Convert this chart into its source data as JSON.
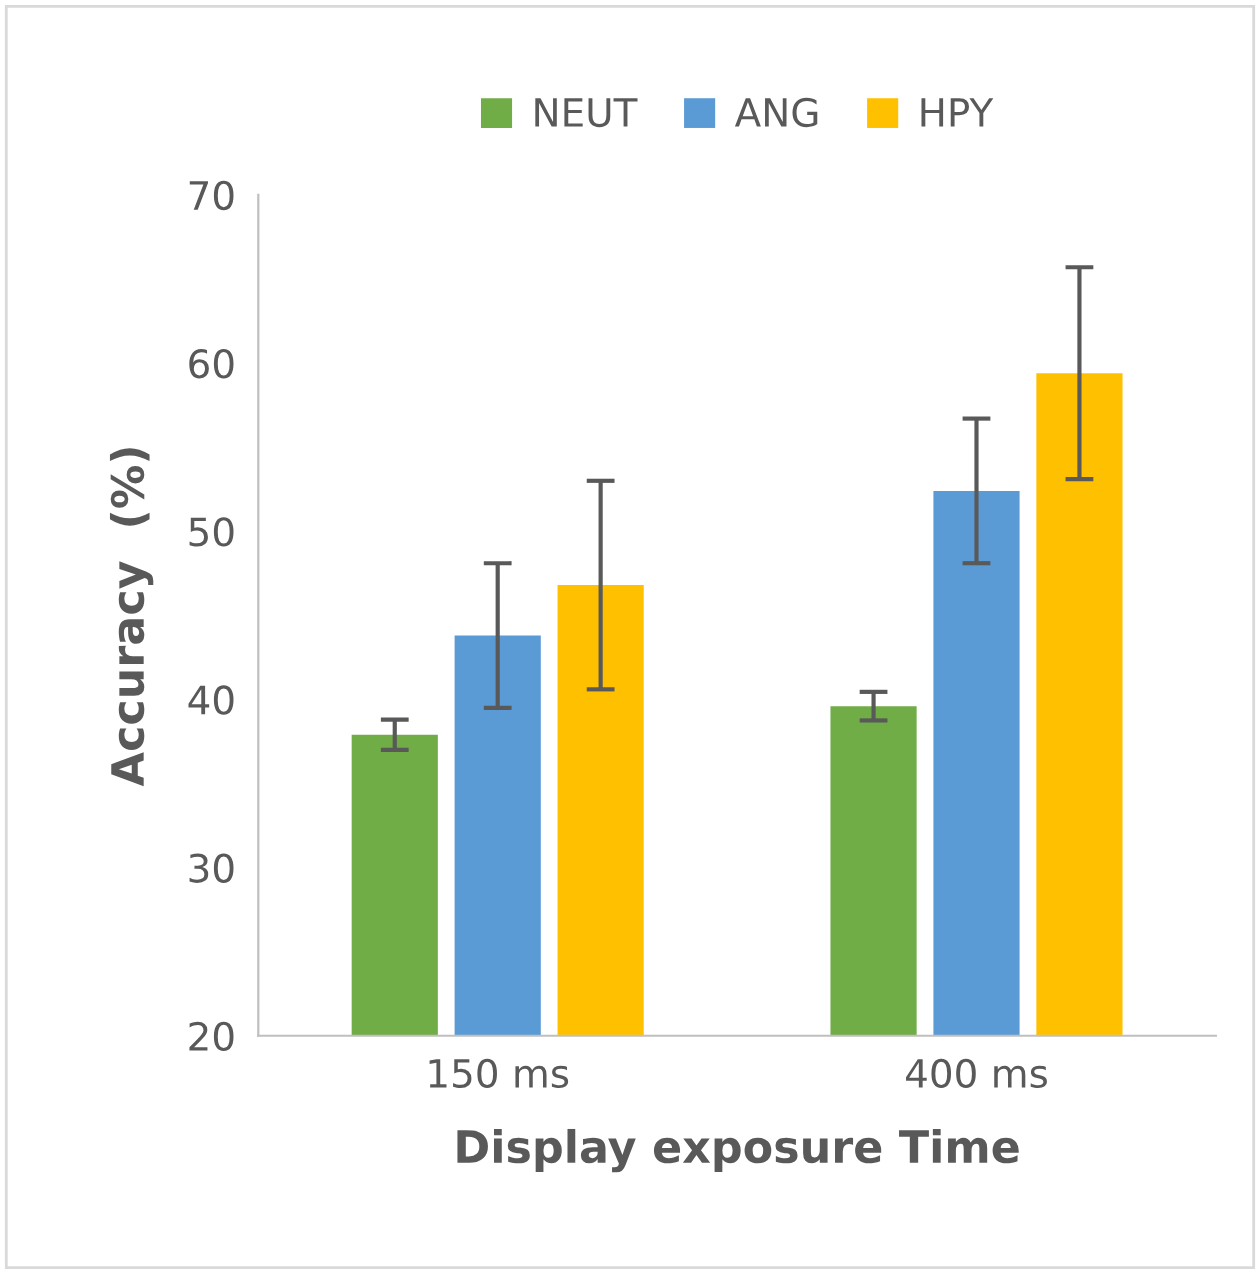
{
  "chart_data": {
    "type": "bar",
    "xlabel": "Display exposure Time",
    "ylabel": "Accuracy  (%)",
    "categories": [
      "150 ms",
      "400 ms"
    ],
    "series": [
      {
        "name": "NEUT",
        "color": "#70ad47",
        "values": [
          37.9,
          39.6
        ],
        "errors": [
          0.9,
          0.85
        ]
      },
      {
        "name": "ANG",
        "color": "#5b9bd5",
        "values": [
          43.8,
          52.4
        ],
        "errors": [
          4.3,
          4.3
        ]
      },
      {
        "name": "HPY",
        "color": "#ffc000",
        "values": [
          46.8,
          59.4
        ],
        "errors": [
          6.2,
          6.3
        ]
      }
    ],
    "ylim": [
      20,
      70
    ],
    "yticks": [
      20,
      30,
      40,
      50,
      60,
      70
    ],
    "grid": false,
    "legend": "top"
  }
}
